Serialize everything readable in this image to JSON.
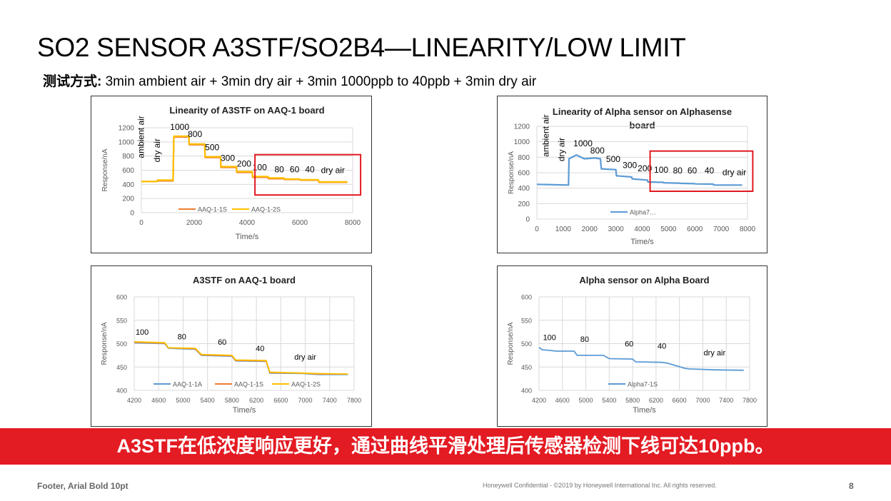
{
  "page": {
    "title": "SO2 SENSOR A3STF/SO2B4—LINEARITY/LOW LIMIT",
    "subtitle_label": "测试方式:",
    "subtitle_text": "3min ambient air + 3min dry air + 3min 1000ppb to 40ppb + 3min dry air",
    "banner": "A3STF在低浓度响应更好，通过曲线平滑处理后传感器检测下线可达10ppb。",
    "footer_left": "Footer, Arial Bold 10pt",
    "footer_mid": "Honeywell  Confidential  - ©2019  by  Honeywell  International  Inc.  All  rights  reserved.",
    "page_number": "8",
    "colors": {
      "banner": "#e31b23",
      "highlight_box": "#e0191f",
      "orange": "#ed7d31",
      "gold": "#ffc000",
      "blue": "#5b9bd5"
    }
  },
  "chart_data": [
    {
      "id": "c1",
      "type": "line",
      "title": "Linearity of A3STF on AAQ-1 board",
      "xlabel": "Time/s",
      "ylabel": "Response/nA",
      "xlim": [
        0,
        8000
      ],
      "ylim": [
        0,
        1200
      ],
      "xticks": [
        0,
        2000,
        4000,
        6000,
        8000
      ],
      "yticks": [
        0,
        200,
        400,
        600,
        800,
        1000,
        1200
      ],
      "series": [
        {
          "name": "AAQ-1-1S",
          "color": "#ed7d31",
          "x": [
            0,
            600,
            610,
            1200,
            1230,
            1800,
            1810,
            2400,
            2410,
            3000,
            3010,
            3600,
            3610,
            4200,
            4210,
            4800,
            4810,
            5400,
            5410,
            6000,
            6010,
            6700,
            6720,
            7800
          ],
          "y": [
            440,
            440,
            450,
            450,
            1070,
            1070,
            960,
            960,
            780,
            780,
            640,
            640,
            570,
            570,
            500,
            500,
            480,
            480,
            470,
            470,
            460,
            460,
            430,
            430
          ]
        },
        {
          "name": "AAQ-1-2S",
          "color": "#ffc000",
          "x": [
            0,
            600,
            610,
            1200,
            1230,
            1800,
            1810,
            2400,
            2410,
            3000,
            3010,
            3600,
            3610,
            4200,
            4210,
            4800,
            4810,
            5400,
            5410,
            6000,
            6010,
            6700,
            6720,
            7800
          ],
          "y": [
            440,
            440,
            460,
            460,
            1080,
            1080,
            970,
            970,
            790,
            790,
            650,
            650,
            580,
            580,
            510,
            510,
            490,
            490,
            475,
            475,
            465,
            465,
            435,
            435
          ]
        }
      ],
      "annotations": [
        {
          "text": "ambient air",
          "x": 100,
          "y": 1070,
          "rotate": true
        },
        {
          "text": "dry air",
          "x": 700,
          "y": 880,
          "rotate": true
        },
        {
          "text": "1000",
          "x": 1450,
          "y": 1170
        },
        {
          "text": "800",
          "x": 2030,
          "y": 1070
        },
        {
          "text": "500",
          "x": 2680,
          "y": 880
        },
        {
          "text": "300",
          "x": 3270,
          "y": 730
        },
        {
          "text": "200",
          "x": 3890,
          "y": 650
        },
        {
          "text": "100",
          "x": 4480,
          "y": 600
        },
        {
          "text": "80",
          "x": 5220,
          "y": 570
        },
        {
          "text": "60",
          "x": 5800,
          "y": 570
        },
        {
          "text": "40",
          "x": 6380,
          "y": 570
        },
        {
          "text": "dry air",
          "x": 7250,
          "y": 560
        }
      ],
      "highlight": {
        "x0": 4300,
        "x1": 8300,
        "y0": 250,
        "y1": 820
      }
    },
    {
      "id": "c2",
      "type": "line",
      "title": "Linearity of Alpha sensor on Alphasense board",
      "title_lines": [
        "Linearity of Alpha sensor on Alphasense",
        "board"
      ],
      "xlabel": "Time/s",
      "ylabel": "Response/nA",
      "xlim": [
        0,
        8000
      ],
      "ylim": [
        0,
        1200
      ],
      "xticks": [
        0,
        1000,
        2000,
        3000,
        4000,
        5000,
        6000,
        7000,
        8000
      ],
      "yticks": [
        0,
        200,
        400,
        600,
        800,
        1000,
        1200
      ],
      "series": [
        {
          "name": "Alpha7…",
          "color": "#5b9bd5",
          "x": [
            0,
            1200,
            1220,
            1500,
            1800,
            2200,
            2410,
            2450,
            3000,
            3020,
            3600,
            3620,
            4200,
            4220,
            4800,
            4820,
            5400,
            5420,
            6000,
            6020,
            6700,
            6720,
            7800
          ],
          "y": [
            450,
            440,
            780,
            830,
            780,
            790,
            780,
            650,
            640,
            560,
            545,
            520,
            505,
            480,
            475,
            470,
            465,
            462,
            458,
            455,
            452,
            440,
            440
          ]
        }
      ],
      "annotations": [
        {
          "text": "ambient air",
          "x": 450,
          "y": 1080,
          "rotate": true
        },
        {
          "text": "dry air",
          "x": 1050,
          "y": 900,
          "rotate": true
        },
        {
          "text": "1000",
          "x": 1750,
          "y": 940
        },
        {
          "text": "800",
          "x": 2300,
          "y": 850
        },
        {
          "text": "500",
          "x": 2900,
          "y": 740
        },
        {
          "text": "300",
          "x": 3530,
          "y": 660
        },
        {
          "text": "200",
          "x": 4100,
          "y": 620
        },
        {
          "text": "100",
          "x": 4720,
          "y": 600
        },
        {
          "text": "80",
          "x": 5350,
          "y": 590
        },
        {
          "text": "60",
          "x": 5900,
          "y": 590
        },
        {
          "text": "40",
          "x": 6550,
          "y": 590
        },
        {
          "text": "dry air",
          "x": 7500,
          "y": 570
        }
      ],
      "highlight": {
        "x0": 4300,
        "x1": 8200,
        "y0": 360,
        "y1": 880
      }
    },
    {
      "id": "c3",
      "type": "line",
      "title": "A3STF on AAQ-1 board",
      "xlabel": "Time/s",
      "ylabel": "Response/nA",
      "xlim": [
        4200,
        7800
      ],
      "ylim": [
        400,
        600
      ],
      "xticks": [
        4200,
        4600,
        5000,
        5400,
        5800,
        6200,
        6600,
        7000,
        7400,
        7800
      ],
      "yticks": [
        400,
        450,
        500,
        550,
        600
      ],
      "series": [
        {
          "name": "AAQ-1-1A",
          "color": "#5b9bd5",
          "x": [
            4200,
            4700,
            4760,
            5200,
            5300,
            5800,
            5860,
            6360,
            6420,
            6960,
            7200,
            7700
          ],
          "y": [
            502,
            500,
            490,
            488,
            475,
            473,
            463,
            462,
            437,
            436,
            434,
            434
          ]
        },
        {
          "name": "AAQ-1-1S",
          "color": "#ed7d31",
          "x": [
            4200,
            4700,
            4760,
            5200,
            5300,
            5800,
            5860,
            6360,
            6420,
            6960,
            7200,
            7700
          ],
          "y": [
            503,
            501,
            491,
            489,
            476,
            474,
            464,
            463,
            438,
            437,
            435,
            435
          ]
        },
        {
          "name": "AAQ-1-2S",
          "color": "#ffc000",
          "x": [
            4200,
            4700,
            4760,
            5200,
            5300,
            5800,
            5860,
            6360,
            6420,
            6960,
            7200,
            7700
          ],
          "y": [
            504,
            502,
            491,
            490,
            477,
            475,
            465,
            464,
            439,
            437,
            436,
            435
          ]
        }
      ],
      "annotations": [
        {
          "text": "100",
          "x": 4330,
          "y": 519
        },
        {
          "text": "80",
          "x": 4980,
          "y": 509
        },
        {
          "text": "60",
          "x": 5640,
          "y": 498
        },
        {
          "text": "40",
          "x": 6260,
          "y": 484
        },
        {
          "text": "dry air",
          "x": 7000,
          "y": 466
        }
      ],
      "highlight": null
    },
    {
      "id": "c4",
      "type": "line",
      "title": "Alpha sensor on Alpha Board",
      "xlabel": "Time/s",
      "ylabel": "Response/nA",
      "xlim": [
        4200,
        7800
      ],
      "ylim": [
        400,
        600
      ],
      "xticks": [
        4200,
        4600,
        5000,
        5400,
        5800,
        6200,
        6600,
        7000,
        7400,
        7800
      ],
      "yticks": [
        400,
        450,
        500,
        550,
        600
      ],
      "series": [
        {
          "name": "Alpha7-1S",
          "color": "#5b9bd5",
          "x": [
            4200,
            4250,
            4500,
            4800,
            4850,
            5300,
            5400,
            5800,
            5850,
            6300,
            6400,
            6700,
            6760,
            7200,
            7700
          ],
          "y": [
            492,
            487,
            484,
            484,
            475,
            475,
            468,
            467,
            461,
            460,
            458,
            447,
            446,
            444,
            443
          ]
        }
      ],
      "annotations": [
        {
          "text": "100",
          "x": 4380,
          "y": 508
        },
        {
          "text": "80",
          "x": 4980,
          "y": 504
        },
        {
          "text": "60",
          "x": 5740,
          "y": 494
        },
        {
          "text": "40",
          "x": 6300,
          "y": 489
        },
        {
          "text": "dry air",
          "x": 7200,
          "y": 475
        }
      ],
      "highlight": null
    }
  ]
}
